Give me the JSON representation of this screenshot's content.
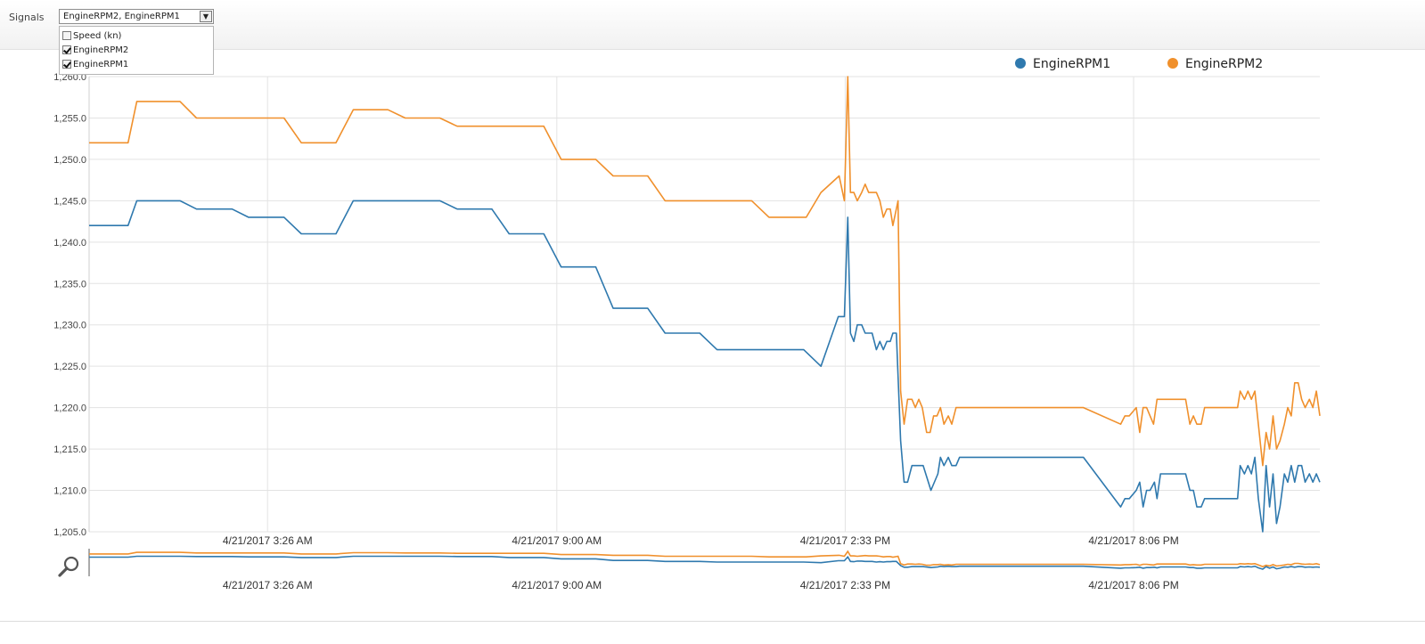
{
  "toolbar": {
    "signals_label": "Signals",
    "select_value": "EngineRPM2, EngineRPM1",
    "options": [
      {
        "label": "Speed (kn)",
        "checked": false
      },
      {
        "label": "EngineRPM2",
        "checked": true
      },
      {
        "label": "EngineRPM1",
        "checked": true
      }
    ]
  },
  "chart_data": {
    "type": "line",
    "x_axis_type": "time",
    "xlim": [
      "4/21/2017 12:00 AM",
      "4/21/2017 11:57 PM"
    ],
    "ylim": [
      1205,
      1260
    ],
    "grid": true,
    "legend_position": "top-right",
    "yticks": [
      "1,205.0",
      "1,210.0",
      "1,215.0",
      "1,220.0",
      "1,225.0",
      "1,230.0",
      "1,235.0",
      "1,240.0",
      "1,245.0",
      "1,250.0",
      "1,255.0",
      "1,260.0"
    ],
    "xticks": [
      "4/21/2017 3:26 AM",
      "4/21/2017 9:00 AM",
      "4/21/2017 2:33 PM",
      "4/21/2017 8:06 PM"
    ],
    "xtick_minutes": [
      206,
      540,
      873,
      1206
    ],
    "series": [
      {
        "name": "EngineRPM1",
        "color": "#2f79ae",
        "points": [
          [
            0,
            1242
          ],
          [
            45,
            1242
          ],
          [
            55,
            1245
          ],
          [
            105,
            1245
          ],
          [
            124,
            1244
          ],
          [
            165,
            1244
          ],
          [
            184,
            1243
          ],
          [
            225,
            1243
          ],
          [
            245,
            1241
          ],
          [
            285,
            1241
          ],
          [
            305,
            1245
          ],
          [
            405,
            1245
          ],
          [
            425,
            1244
          ],
          [
            465,
            1244
          ],
          [
            485,
            1241
          ],
          [
            525,
            1241
          ],
          [
            545,
            1237
          ],
          [
            585,
            1237
          ],
          [
            605,
            1232
          ],
          [
            645,
            1232
          ],
          [
            665,
            1229
          ],
          [
            705,
            1229
          ],
          [
            725,
            1227
          ],
          [
            825,
            1227
          ],
          [
            845,
            1225
          ],
          [
            865,
            1231
          ],
          [
            872,
            1231
          ],
          [
            876,
            1243
          ],
          [
            879,
            1229
          ],
          [
            883,
            1228
          ],
          [
            887,
            1230
          ],
          [
            892,
            1230
          ],
          [
            896,
            1229
          ],
          [
            904,
            1229
          ],
          [
            909,
            1227
          ],
          [
            913,
            1228
          ],
          [
            917,
            1227
          ],
          [
            921,
            1228
          ],
          [
            925,
            1228
          ],
          [
            928,
            1229
          ],
          [
            932,
            1229
          ],
          [
            937,
            1216
          ],
          [
            941,
            1211
          ],
          [
            945,
            1211
          ],
          [
            950,
            1213
          ],
          [
            963,
            1213
          ],
          [
            972,
            1210
          ],
          [
            980,
            1212
          ],
          [
            983,
            1214
          ],
          [
            987,
            1213
          ],
          [
            992,
            1214
          ],
          [
            996,
            1213
          ],
          [
            1001,
            1213
          ],
          [
            1005,
            1214
          ],
          [
            1148,
            1214
          ],
          [
            1191,
            1208
          ],
          [
            1196,
            1209
          ],
          [
            1201,
            1209
          ],
          [
            1209,
            1210
          ],
          [
            1213,
            1211
          ],
          [
            1217,
            1208
          ],
          [
            1221,
            1210
          ],
          [
            1225,
            1210
          ],
          [
            1230,
            1211
          ],
          [
            1233,
            1209
          ],
          [
            1237,
            1212
          ],
          [
            1266,
            1212
          ],
          [
            1271,
            1210
          ],
          [
            1275,
            1210
          ],
          [
            1279,
            1208
          ],
          [
            1284,
            1208
          ],
          [
            1288,
            1209
          ],
          [
            1326,
            1209
          ],
          [
            1329,
            1213
          ],
          [
            1334,
            1212
          ],
          [
            1338,
            1213
          ],
          [
            1342,
            1212
          ],
          [
            1346,
            1214
          ],
          [
            1350,
            1209
          ],
          [
            1355,
            1205
          ],
          [
            1359,
            1213
          ],
          [
            1363,
            1208
          ],
          [
            1367,
            1212
          ],
          [
            1371,
            1206
          ],
          [
            1375,
            1208
          ],
          [
            1380,
            1212
          ],
          [
            1384,
            1211
          ],
          [
            1388,
            1213
          ],
          [
            1392,
            1211
          ],
          [
            1396,
            1213
          ],
          [
            1400,
            1213
          ],
          [
            1404,
            1211
          ],
          [
            1409,
            1212
          ],
          [
            1413,
            1211
          ],
          [
            1417,
            1212
          ],
          [
            1421,
            1211
          ]
        ]
      },
      {
        "name": "EngineRPM2",
        "color": "#f0902c",
        "points": [
          [
            0,
            1252
          ],
          [
            45,
            1252
          ],
          [
            55,
            1257
          ],
          [
            105,
            1257
          ],
          [
            124,
            1255
          ],
          [
            225,
            1255
          ],
          [
            245,
            1252
          ],
          [
            285,
            1252
          ],
          [
            305,
            1256
          ],
          [
            345,
            1256
          ],
          [
            365,
            1255
          ],
          [
            405,
            1255
          ],
          [
            425,
            1254
          ],
          [
            525,
            1254
          ],
          [
            545,
            1250
          ],
          [
            585,
            1250
          ],
          [
            605,
            1248
          ],
          [
            645,
            1248
          ],
          [
            665,
            1245
          ],
          [
            765,
            1245
          ],
          [
            785,
            1243
          ],
          [
            828,
            1243
          ],
          [
            845,
            1246
          ],
          [
            866,
            1248
          ],
          [
            872,
            1245
          ],
          [
            876,
            1260
          ],
          [
            879,
            1246
          ],
          [
            883,
            1246
          ],
          [
            887,
            1245
          ],
          [
            892,
            1246
          ],
          [
            896,
            1247
          ],
          [
            900,
            1246
          ],
          [
            904,
            1246
          ],
          [
            909,
            1246
          ],
          [
            913,
            1245
          ],
          [
            917,
            1243
          ],
          [
            921,
            1244
          ],
          [
            925,
            1244
          ],
          [
            928,
            1242
          ],
          [
            934,
            1245
          ],
          [
            937,
            1222
          ],
          [
            941,
            1218
          ],
          [
            945,
            1221
          ],
          [
            950,
            1221
          ],
          [
            954,
            1220
          ],
          [
            958,
            1221
          ],
          [
            962,
            1220
          ],
          [
            967,
            1217
          ],
          [
            971,
            1217
          ],
          [
            975,
            1219
          ],
          [
            979,
            1219
          ],
          [
            983,
            1220
          ],
          [
            987,
            1218
          ],
          [
            992,
            1219
          ],
          [
            996,
            1218
          ],
          [
            1001,
            1220
          ],
          [
            1148,
            1220
          ],
          [
            1191,
            1218
          ],
          [
            1196,
            1219
          ],
          [
            1201,
            1219
          ],
          [
            1209,
            1220
          ],
          [
            1213,
            1217
          ],
          [
            1217,
            1220
          ],
          [
            1221,
            1220
          ],
          [
            1225,
            1219
          ],
          [
            1229,
            1218
          ],
          [
            1233,
            1221
          ],
          [
            1266,
            1221
          ],
          [
            1271,
            1218
          ],
          [
            1275,
            1219
          ],
          [
            1279,
            1218
          ],
          [
            1284,
            1218
          ],
          [
            1288,
            1220
          ],
          [
            1326,
            1220
          ],
          [
            1329,
            1222
          ],
          [
            1334,
            1221
          ],
          [
            1338,
            1222
          ],
          [
            1342,
            1221
          ],
          [
            1346,
            1222
          ],
          [
            1350,
            1218
          ],
          [
            1355,
            1213
          ],
          [
            1359,
            1217
          ],
          [
            1363,
            1215
          ],
          [
            1367,
            1219
          ],
          [
            1371,
            1215
          ],
          [
            1375,
            1216
          ],
          [
            1380,
            1218
          ],
          [
            1384,
            1220
          ],
          [
            1388,
            1219
          ],
          [
            1392,
            1223
          ],
          [
            1396,
            1223
          ],
          [
            1400,
            1221
          ],
          [
            1404,
            1220
          ],
          [
            1409,
            1221
          ],
          [
            1413,
            1220
          ],
          [
            1417,
            1222
          ],
          [
            1421,
            1219
          ]
        ]
      }
    ]
  }
}
